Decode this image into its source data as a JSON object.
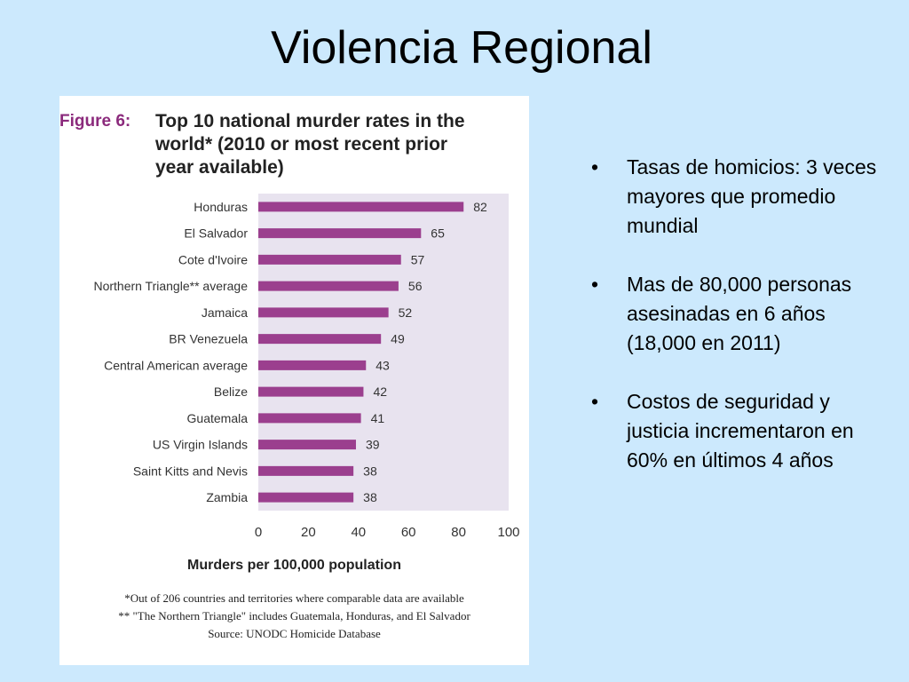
{
  "slide": {
    "title": "Violencia Regional",
    "bullets": [
      "Tasas de homicios: 3 veces mayores que promedio mundial",
      "Mas de 80,000 personas asesinadas en 6 años (18,000 en 2011)",
      "Costos de seguridad y justicia incrementaron en 60% en últimos 4 años"
    ]
  },
  "figure": {
    "label": "Figure 6:",
    "title_lines": [
      "Top 10 national murder rates in the",
      "world* (2010 or most recent prior",
      "year available)"
    ],
    "notes": [
      "*Out of 206 countries and territories where comparable data are available",
      "** \"The Northern Triangle\" includes Guatemala, Honduras, and El Salvador",
      "Source: UNODC Homicide Database"
    ]
  },
  "colors": {
    "background": "#cce9fd",
    "plot_background": "#e8e3ef",
    "bar": "#9b3f8e",
    "figure_label": "#8b2a7c"
  },
  "chart_data": {
    "type": "bar",
    "orientation": "horizontal",
    "title": "Top 10 national murder rates in the world* (2010 or most recent prior year available)",
    "xlabel": "Murders per 100,000 population",
    "ylabel": "",
    "categories": [
      "Honduras",
      "El Salvador",
      "Cote d'Ivoire",
      "Northern Triangle** average",
      "Jamaica",
      "BR Venezuela",
      "Central American average",
      "Belize",
      "Guatemala",
      "US Virgin Islands",
      "Saint Kitts and Nevis",
      "Zambia"
    ],
    "values": [
      82,
      65,
      57,
      56,
      52,
      49,
      43,
      42,
      41,
      39,
      38,
      38
    ],
    "data_labels": [
      "82",
      "65",
      "57",
      "56",
      "52",
      "49",
      "43",
      "42",
      "41",
      "39",
      "38",
      "38"
    ],
    "xlim": [
      0,
      100
    ],
    "xticks": [
      "0",
      "20",
      "40",
      "60",
      "80",
      "100"
    ],
    "grid": false,
    "legend": "none"
  }
}
